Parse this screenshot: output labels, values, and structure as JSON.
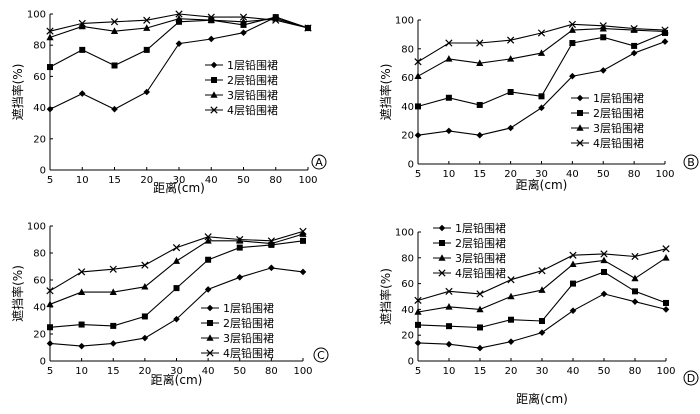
{
  "chart_data": [
    {
      "type": "line",
      "panel": "A",
      "categories": [
        "5",
        "10",
        "15",
        "20",
        "30",
        "40",
        "50",
        "80",
        "100"
      ],
      "xlabel": "距离(cm)",
      "ylabel": "遮挡率(%)",
      "ylim": [
        0,
        100
      ],
      "yticks": [
        "0",
        "20",
        "40",
        "60",
        "80",
        "100"
      ],
      "grid": false,
      "legend_position": "center-right",
      "series": [
        {
          "name": "1层铅围裙",
          "marker": "diamond",
          "values": [
            39,
            49,
            39,
            50,
            81,
            84,
            88,
            98,
            91
          ]
        },
        {
          "name": "2层铅围裙",
          "marker": "square",
          "values": [
            66,
            77,
            67,
            77,
            95,
            96,
            93,
            98,
            91
          ]
        },
        {
          "name": "3层铅围裙",
          "marker": "triangle",
          "values": [
            85,
            92,
            89,
            91,
            97,
            96,
            95,
            97,
            91
          ]
        },
        {
          "name": "4层铅围裙",
          "marker": "cross",
          "values": [
            89,
            94,
            95,
            96,
            100,
            98,
            98,
            96,
            91
          ]
        }
      ]
    },
    {
      "type": "line",
      "panel": "B",
      "categories": [
        "5",
        "10",
        "15",
        "20",
        "30",
        "40",
        "50",
        "80",
        "100"
      ],
      "xlabel": "距离(cm)",
      "ylabel": "遮挡率(%)",
      "ylim": [
        0,
        100
      ],
      "yticks": [
        "0",
        "20",
        "40",
        "60",
        "80",
        "100"
      ],
      "grid": false,
      "legend_position": "bottom-right",
      "series": [
        {
          "name": "1层铅围裙",
          "marker": "diamond",
          "values": [
            20,
            23,
            20,
            25,
            39,
            61,
            65,
            77,
            85
          ]
        },
        {
          "name": "2层铅围裙",
          "marker": "square",
          "values": [
            40,
            46,
            41,
            50,
            47,
            84,
            88,
            82,
            91
          ]
        },
        {
          "name": "3层铅围裙",
          "marker": "triangle",
          "values": [
            61,
            73,
            70,
            73,
            77,
            93,
            94,
            93,
            92
          ]
        },
        {
          "name": "4层铅围裙",
          "marker": "cross",
          "values": [
            71,
            84,
            84,
            86,
            91,
            97,
            96,
            94,
            93
          ]
        }
      ]
    },
    {
      "type": "line",
      "panel": "C",
      "categories": [
        "5",
        "10",
        "15",
        "20",
        "30",
        "40",
        "50",
        "80",
        "100"
      ],
      "xlabel": "距离(cm)",
      "ylabel": "遮挡率(%)",
      "ylim": [
        0,
        100
      ],
      "yticks": [
        "0",
        "20",
        "40",
        "60",
        "80",
        "100"
      ],
      "grid": false,
      "legend_position": "bottom-right",
      "series": [
        {
          "name": "1层铅围裙",
          "marker": "diamond",
          "values": [
            13,
            11,
            13,
            17,
            31,
            53,
            62,
            69,
            66
          ]
        },
        {
          "name": "2层铅围裙",
          "marker": "square",
          "values": [
            25,
            27,
            26,
            33,
            54,
            75,
            84,
            86,
            89
          ]
        },
        {
          "name": "3层铅围裙",
          "marker": "triangle",
          "values": [
            42,
            51,
            51,
            55,
            74,
            89,
            89,
            87,
            94
          ]
        },
        {
          "name": "4层铅围裙",
          "marker": "cross",
          "values": [
            52,
            66,
            68,
            71,
            84,
            92,
            90,
            89,
            96
          ]
        }
      ]
    },
    {
      "type": "line",
      "panel": "D",
      "categories": [
        "5",
        "10",
        "15",
        "20",
        "30",
        "40",
        "50",
        "80",
        "100"
      ],
      "xlabel": "距离(cm)",
      "ylabel": "遮挡率(%)",
      "ylim": [
        0,
        100
      ],
      "yticks": [
        "0",
        "20",
        "40",
        "60",
        "80",
        "100"
      ],
      "grid": false,
      "legend_position": "top-left",
      "series": [
        {
          "name": "1层铅围裙",
          "marker": "diamond",
          "values": [
            14,
            13,
            10,
            15,
            22,
            39,
            52,
            46,
            40
          ]
        },
        {
          "name": "2层铅围裙",
          "marker": "square",
          "values": [
            28,
            27,
            26,
            32,
            31,
            60,
            69,
            54,
            45
          ]
        },
        {
          "name": "3层铅围裙",
          "marker": "triangle",
          "values": [
            38,
            42,
            40,
            50,
            55,
            75,
            78,
            64,
            80
          ]
        },
        {
          "name": "4层铅围裙",
          "marker": "cross",
          "values": [
            47,
            54,
            52,
            63,
            70,
            82,
            83,
            81,
            87
          ]
        }
      ]
    }
  ]
}
